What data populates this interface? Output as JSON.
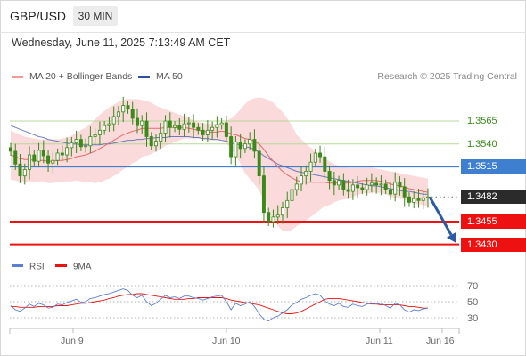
{
  "header": {
    "symbol": "GBP/USD",
    "interval": "30 MIN",
    "datetime": "Wednesday, June 11, 2025 7:13:49 AM CET"
  },
  "legend": {
    "ma20_label": "MA 20 + Bollinger Bands",
    "ma50_label": "MA 50",
    "credit": "Research © 2025 Trading Central"
  },
  "colors": {
    "ma20": "#e86a6a",
    "ma50": "#4b63b3",
    "bollinger_fill": "#f9d4d4",
    "candle": "#3a8a1a",
    "resistance_light": "#b8d898",
    "resistance_line": "#3f7fd0",
    "support_line": "#ee1111",
    "arrow": "#2a5aa6",
    "rsi": "#5b7fd1",
    "rsi_ma": "#ee1111"
  },
  "levels": [
    {
      "value": "1.3565",
      "kind": "resistance_light"
    },
    {
      "value": "1.3540",
      "kind": "resistance_light"
    },
    {
      "value": "1.3515",
      "kind": "resistance"
    },
    {
      "value": "1.3482",
      "kind": "current"
    },
    {
      "value": "1.3455",
      "kind": "support"
    },
    {
      "value": "1.3430",
      "kind": "support"
    }
  ],
  "rsi": {
    "label": "RSI",
    "ma_label": "9MA",
    "ticks": [
      "70",
      "50",
      "30"
    ]
  },
  "x_axis": {
    "labels": [
      "Jun 9",
      "Jun 10",
      "Jun 11",
      "Jun 16"
    ]
  },
  "chart_data": {
    "type": "candlestick",
    "ylim": [
      1.3415,
      1.3605
    ],
    "close": [
      1.3532,
      1.3518,
      1.3505,
      1.3512,
      1.3528,
      1.3521,
      1.3533,
      1.3527,
      1.3519,
      1.3522,
      1.353,
      1.3528,
      1.3536,
      1.3541,
      1.3545,
      1.3537,
      1.3538,
      1.3548,
      1.355,
      1.3555,
      1.356,
      1.3562,
      1.357,
      1.3575,
      1.3582,
      1.3578,
      1.3568,
      1.356,
      1.3565,
      1.3548,
      1.3538,
      1.3543,
      1.3552,
      1.3565,
      1.3558,
      1.356,
      1.3556,
      1.3562,
      1.3563,
      1.3558,
      1.3555,
      1.355,
      1.3555,
      1.3558,
      1.3561,
      1.3563,
      1.3548,
      1.3526,
      1.3542,
      1.3535,
      1.354,
      1.3545,
      1.3532,
      1.3505,
      1.3465,
      1.3455,
      1.346,
      1.3462,
      1.347,
      1.3478,
      1.349,
      1.3496,
      1.3505,
      1.351,
      1.352,
      1.353,
      1.3526,
      1.351,
      1.35,
      1.3495,
      1.35,
      1.349,
      1.3488,
      1.3495,
      1.3492,
      1.349,
      1.3495,
      1.3497,
      1.3495,
      1.3496,
      1.349,
      1.3485,
      1.3498,
      1.3493,
      1.3482,
      1.3476,
      1.348,
      1.3478,
      1.3481,
      1.3482
    ],
    "ma20": [
      1.3528,
      1.3526,
      1.3524,
      1.3523,
      1.3523,
      1.3522,
      1.3522,
      1.3522,
      1.3521,
      1.3521,
      1.3522,
      1.3522,
      1.3523,
      1.3524,
      1.3526,
      1.3527,
      1.3528,
      1.353,
      1.3532,
      1.3535,
      1.3538,
      1.3541,
      1.3544,
      1.3547,
      1.355,
      1.3552,
      1.3554,
      1.3555,
      1.3557,
      1.3557,
      1.3557,
      1.3557,
      1.3557,
      1.3558,
      1.3558,
      1.3558,
      1.3558,
      1.3558,
      1.3557,
      1.3556,
      1.3555,
      1.3554,
      1.3553,
      1.3553,
      1.3553,
      1.3554,
      1.3553,
      1.3551,
      1.355,
      1.3548,
      1.3546,
      1.3545,
      1.3543,
      1.354,
      1.3534,
      1.3527,
      1.3521,
      1.3515,
      1.351,
      1.3506,
      1.3503,
      1.35,
      1.3499,
      1.3498,
      1.3498,
      1.3498,
      1.3498,
      1.3498,
      1.3497,
      1.3497,
      1.3497,
      1.3497,
      1.3497,
      1.3498,
      1.3499,
      1.35,
      1.35,
      1.35,
      1.35,
      1.3499,
      1.3498,
      1.3496,
      1.3495,
      1.3494,
      1.3493,
      1.3491,
      1.349,
      1.3489,
      1.3488,
      1.3487
    ],
    "bb_upper": [
      1.3555,
      1.3552,
      1.355,
      1.3548,
      1.3547,
      1.3546,
      1.3545,
      1.3545,
      1.3545,
      1.3545,
      1.3545,
      1.3546,
      1.3547,
      1.3549,
      1.3552,
      1.3555,
      1.3558,
      1.3562,
      1.3567,
      1.3572,
      1.3576,
      1.358,
      1.3583,
      1.3586,
      1.3588,
      1.3589,
      1.3589,
      1.3589,
      1.3588,
      1.3587,
      1.3585,
      1.3582,
      1.358,
      1.3578,
      1.3576,
      1.3574,
      1.3572,
      1.357,
      1.3568,
      1.3566,
      1.3564,
      1.3563,
      1.3562,
      1.3562,
      1.3562,
      1.3563,
      1.3565,
      1.3568,
      1.3572,
      1.3578,
      1.3584,
      1.3588,
      1.359,
      1.3591,
      1.359,
      1.3588,
      1.3585,
      1.358,
      1.3575,
      1.3568,
      1.356,
      1.355,
      1.3545,
      1.354,
      1.3536,
      1.3532,
      1.3528,
      1.3524,
      1.3521,
      1.3518,
      1.3516,
      1.3515,
      1.3514,
      1.3514,
      1.3514,
      1.3514,
      1.3514,
      1.3514,
      1.3513,
      1.3512,
      1.3511,
      1.351,
      1.3509,
      1.3508,
      1.3507,
      1.3506,
      1.3505,
      1.3504,
      1.3503,
      1.3502
    ],
    "bb_lower": [
      1.3501,
      1.35,
      1.3498,
      1.3498,
      1.3499,
      1.3498,
      1.3499,
      1.3499,
      1.3497,
      1.3497,
      1.3499,
      1.3498,
      1.3499,
      1.3499,
      1.35,
      1.3499,
      1.3498,
      1.3498,
      1.3497,
      1.3498,
      1.35,
      1.3502,
      1.3505,
      1.3508,
      1.3512,
      1.3515,
      1.3519,
      1.3521,
      1.3526,
      1.3527,
      1.3529,
      1.3532,
      1.3534,
      1.3538,
      1.354,
      1.3542,
      1.3544,
      1.3546,
      1.3546,
      1.3546,
      1.3546,
      1.3545,
      1.3544,
      1.3544,
      1.3544,
      1.3545,
      1.3541,
      1.3534,
      1.3528,
      1.3518,
      1.3508,
      1.3502,
      1.3496,
      1.3489,
      1.3478,
      1.3466,
      1.3457,
      1.345,
      1.3445,
      1.3444,
      1.3446,
      1.345,
      1.3453,
      1.3456,
      1.346,
      1.3464,
      1.3468,
      1.3472,
      1.3473,
      1.3476,
      1.3478,
      1.3479,
      1.348,
      1.3482,
      1.3484,
      1.3486,
      1.3486,
      1.3486,
      1.3487,
      1.3486,
      1.3485,
      1.3482,
      1.3481,
      1.348,
      1.3479,
      1.3476,
      1.3475,
      1.3474,
      1.3473,
      1.3472
    ],
    "ma50": [
      1.356,
      1.3558,
      1.3556,
      1.3554,
      1.3552,
      1.355,
      1.3548,
      1.3547,
      1.3545,
      1.3544,
      1.3543,
      1.3542,
      1.3541,
      1.354,
      1.354,
      1.3539,
      1.3539,
      1.3539,
      1.3539,
      1.3539,
      1.354,
      1.354,
      1.3541,
      1.3542,
      1.3543,
      1.3544,
      1.3544,
      1.3545,
      1.3545,
      1.3546,
      1.3546,
      1.3547,
      1.3547,
      1.3547,
      1.3548,
      1.3548,
      1.3548,
      1.3548,
      1.3548,
      1.3547,
      1.3547,
      1.3546,
      1.3546,
      1.3545,
      1.3545,
      1.3544,
      1.3543,
      1.3541,
      1.354,
      1.3539,
      1.3537,
      1.3536,
      1.3534,
      1.3531,
      1.3527,
      1.3524,
      1.3521,
      1.3518,
      1.3516,
      1.3514,
      1.3512,
      1.351,
      1.3509,
      1.3508,
      1.3507,
      1.3506,
      1.3505,
      1.3504,
      1.3503,
      1.3502,
      1.3501,
      1.35,
      1.3499,
      1.3498,
      1.3497,
      1.3496,
      1.3495,
      1.3494,
      1.3494,
      1.3493,
      1.3492,
      1.3491,
      1.349,
      1.3489,
      1.3488,
      1.3488,
      1.3487,
      1.3486,
      1.3485,
      1.3485
    ],
    "rsi": [
      45,
      40,
      38,
      42,
      47,
      44,
      48,
      46,
      42,
      43,
      47,
      46,
      49,
      51,
      53,
      49,
      50,
      54,
      55,
      57,
      59,
      60,
      62,
      64,
      66,
      64,
      58,
      55,
      58,
      50,
      45,
      48,
      53,
      58,
      55,
      56,
      54,
      57,
      57,
      55,
      54,
      52,
      54,
      56,
      57,
      58,
      50,
      40,
      48,
      45,
      47,
      50,
      44,
      35,
      28,
      26,
      30,
      32,
      36,
      40,
      46,
      49,
      53,
      55,
      58,
      60,
      58,
      51,
      47,
      45,
      48,
      44,
      43,
      47,
      45,
      44,
      47,
      48,
      47,
      48,
      45,
      42,
      48,
      46,
      40,
      37,
      40,
      39,
      41,
      42
    ],
    "rsi_ma": [
      44,
      44,
      43,
      43,
      43,
      43,
      44,
      44,
      44,
      44,
      45,
      45,
      45,
      46,
      47,
      48,
      48,
      49,
      50,
      51,
      52,
      54,
      55,
      57,
      58,
      59,
      59,
      60,
      60,
      59,
      58,
      57,
      56,
      55,
      54,
      53,
      53,
      53,
      54,
      54,
      55,
      55,
      55,
      55,
      55,
      55,
      54,
      52,
      51,
      50,
      49,
      48,
      47,
      46,
      44,
      42,
      40,
      38,
      36,
      35,
      35,
      36,
      38,
      41,
      44,
      47,
      50,
      53,
      54,
      54,
      54,
      53,
      52,
      51,
      50,
      49,
      48,
      47,
      47,
      46,
      46,
      46,
      46,
      46,
      45,
      44,
      44,
      43,
      42,
      42
    ],
    "forecast": [
      1.3482,
      1.343
    ]
  }
}
